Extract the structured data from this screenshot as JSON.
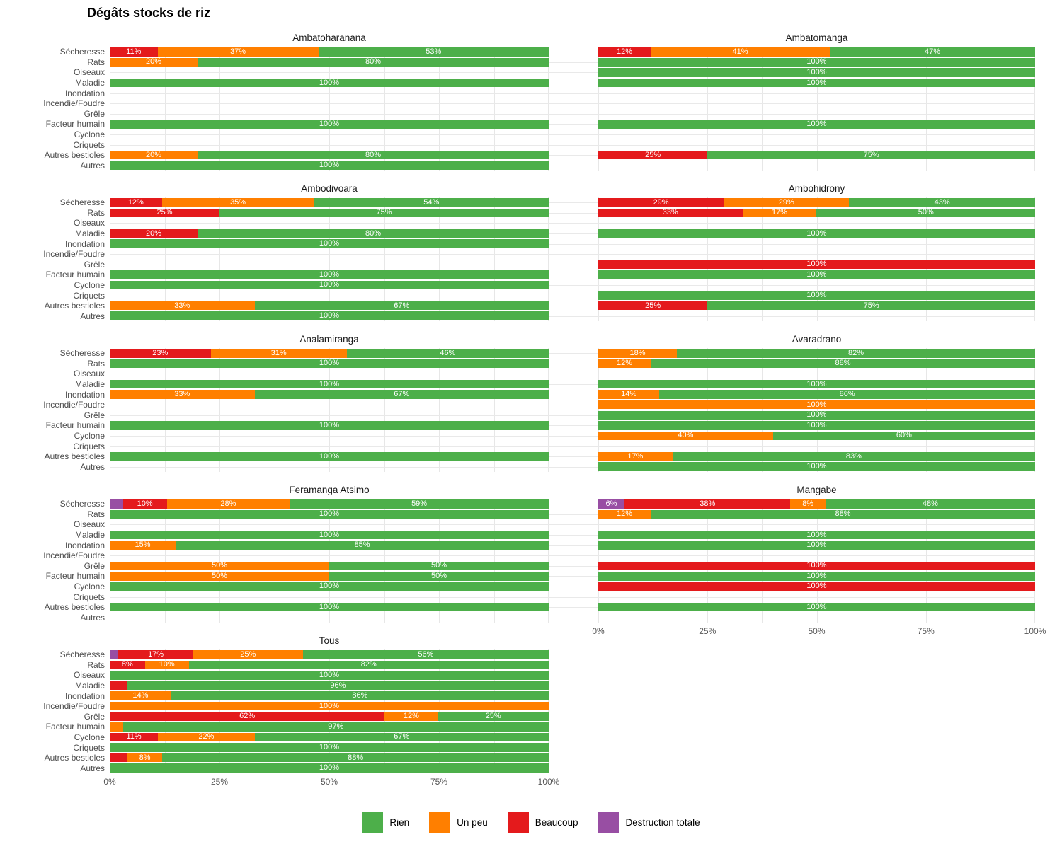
{
  "title": "Dégâts stocks de riz",
  "legend": {
    "items": [
      {
        "label": "Rien",
        "color": "#4daf4a"
      },
      {
        "label": "Un peu",
        "color": "#ff7f00"
      },
      {
        "label": "Beaucoup",
        "color": "#e41a1c"
      },
      {
        "label": "Destruction totale",
        "color": "#984ea3"
      }
    ]
  },
  "chart_data": {
    "type": "bar",
    "stacked": true,
    "orientation": "horizontal",
    "title": "Dégâts stocks de riz",
    "x_ticks": [
      "0%",
      "25%",
      "50%",
      "75%",
      "100%"
    ],
    "x_range": [
      0,
      100
    ],
    "grid": true,
    "legend_position": "bottom",
    "categories": [
      "Sécheresse",
      "Rats",
      "Oiseaux",
      "Maladie",
      "Inondation",
      "Incendie/Foudre",
      "Grêle",
      "Facteur humain",
      "Cyclone",
      "Criquets",
      "Autres bestioles",
      "Autres"
    ],
    "levels": {
      "Rien": "#4daf4a",
      "Un peu": "#ff7f00",
      "Beaucoup": "#e41a1c",
      "Destruction totale": "#984ea3"
    },
    "facet_layout": [
      [
        "Ambatoharanana",
        "Ambatomanga"
      ],
      [
        "Ambodivoara",
        "Ambohidrony"
      ],
      [
        "Analamiranga",
        "Avaradrano"
      ],
      [
        "Feramanga Atsimo",
        "Mangabe"
      ],
      [
        "Tous",
        null
      ]
    ],
    "x_axis_panels": [
      "Mangabe",
      "Tous"
    ],
    "panels": [
      {
        "name": "Ambatoharanana",
        "rows": [
          [
            [
              "Beaucoup",
              11,
              "11%"
            ],
            [
              "Un peu",
              37,
              "37%"
            ],
            [
              "Rien",
              53,
              "53%"
            ]
          ],
          [
            [
              "Un peu",
              20,
              "20%"
            ],
            [
              "Rien",
              80,
              "80%"
            ]
          ],
          [],
          [
            [
              "Rien",
              100,
              "100%"
            ]
          ],
          [],
          [],
          [],
          [
            [
              "Rien",
              100,
              "100%"
            ]
          ],
          [],
          [],
          [
            [
              "Un peu",
              20,
              "20%"
            ],
            [
              "Rien",
              80,
              "80%"
            ]
          ],
          [
            [
              "Rien",
              100,
              "100%"
            ]
          ]
        ]
      },
      {
        "name": "Ambatomanga",
        "rows": [
          [
            [
              "Beaucoup",
              12,
              "12%"
            ],
            [
              "Un peu",
              41,
              "41%"
            ],
            [
              "Rien",
              47,
              "47%"
            ]
          ],
          [
            [
              "Rien",
              100,
              "100%"
            ]
          ],
          [
            [
              "Rien",
              100,
              "100%"
            ]
          ],
          [
            [
              "Rien",
              100,
              "100%"
            ]
          ],
          [],
          [],
          [],
          [
            [
              "Rien",
              100,
              "100%"
            ]
          ],
          [],
          [],
          [
            [
              "Beaucoup",
              25,
              "25%"
            ],
            [
              "Rien",
              75,
              "75%"
            ]
          ],
          []
        ]
      },
      {
        "name": "Ambodivoara",
        "rows": [
          [
            [
              "Beaucoup",
              12,
              "12%"
            ],
            [
              "Un peu",
              35,
              "35%"
            ],
            [
              "Rien",
              54,
              "54%"
            ]
          ],
          [
            [
              "Beaucoup",
              25,
              "25%"
            ],
            [
              "Rien",
              75,
              "75%"
            ]
          ],
          [],
          [
            [
              "Beaucoup",
              20,
              "20%"
            ],
            [
              "Rien",
              80,
              "80%"
            ]
          ],
          [
            [
              "Rien",
              100,
              "100%"
            ]
          ],
          [],
          [],
          [
            [
              "Rien",
              100,
              "100%"
            ]
          ],
          [
            [
              "Rien",
              100,
              "100%"
            ]
          ],
          [],
          [
            [
              "Un peu",
              33,
              "33%"
            ],
            [
              "Rien",
              67,
              "67%"
            ]
          ],
          [
            [
              "Rien",
              100,
              "100%"
            ]
          ]
        ]
      },
      {
        "name": "Ambohidrony",
        "rows": [
          [
            [
              "Beaucoup",
              29,
              "29%"
            ],
            [
              "Un peu",
              29,
              "29%"
            ],
            [
              "Rien",
              43,
              "43%"
            ]
          ],
          [
            [
              "Beaucoup",
              33,
              "33%"
            ],
            [
              "Un peu",
              17,
              "17%"
            ],
            [
              "Rien",
              50,
              "50%"
            ]
          ],
          [],
          [
            [
              "Rien",
              100,
              "100%"
            ]
          ],
          [],
          [],
          [
            [
              "Beaucoup",
              100,
              "100%"
            ]
          ],
          [
            [
              "Rien",
              100,
              "100%"
            ]
          ],
          [],
          [
            [
              "Rien",
              100,
              "100%"
            ]
          ],
          [
            [
              "Beaucoup",
              25,
              "25%"
            ],
            [
              "Rien",
              75,
              "75%"
            ]
          ],
          []
        ]
      },
      {
        "name": "Analamiranga",
        "rows": [
          [
            [
              "Beaucoup",
              23,
              "23%"
            ],
            [
              "Un peu",
              31,
              "31%"
            ],
            [
              "Rien",
              46,
              "46%"
            ]
          ],
          [
            [
              "Rien",
              100,
              "100%"
            ]
          ],
          [],
          [
            [
              "Rien",
              100,
              "100%"
            ]
          ],
          [
            [
              "Un peu",
              33,
              "33%"
            ],
            [
              "Rien",
              67,
              "67%"
            ]
          ],
          [],
          [],
          [
            [
              "Rien",
              100,
              "100%"
            ]
          ],
          [],
          [],
          [
            [
              "Rien",
              100,
              "100%"
            ]
          ],
          []
        ]
      },
      {
        "name": "Avaradrano",
        "rows": [
          [
            [
              "Un peu",
              18,
              "18%"
            ],
            [
              "Rien",
              82,
              "82%"
            ]
          ],
          [
            [
              "Un peu",
              12,
              "12%"
            ],
            [
              "Rien",
              88,
              "88%"
            ]
          ],
          [],
          [
            [
              "Rien",
              100,
              "100%"
            ]
          ],
          [
            [
              "Un peu",
              14,
              "14%"
            ],
            [
              "Rien",
              86,
              "86%"
            ]
          ],
          [
            [
              "Un peu",
              100,
              "100%"
            ]
          ],
          [
            [
              "Rien",
              100,
              "100%"
            ]
          ],
          [
            [
              "Rien",
              100,
              "100%"
            ]
          ],
          [
            [
              "Un peu",
              40,
              "40%"
            ],
            [
              "Rien",
              60,
              "60%"
            ]
          ],
          [],
          [
            [
              "Un peu",
              17,
              "17%"
            ],
            [
              "Rien",
              83,
              "83%"
            ]
          ],
          [
            [
              "Rien",
              100,
              "100%"
            ]
          ]
        ]
      },
      {
        "name": "Feramanga Atsimo",
        "rows": [
          [
            [
              "Destruction totale",
              3,
              ""
            ],
            [
              "Beaucoup",
              10,
              "10%"
            ],
            [
              "Un peu",
              28,
              "28%"
            ],
            [
              "Rien",
              59,
              "59%"
            ]
          ],
          [
            [
              "Rien",
              100,
              "100%"
            ]
          ],
          [],
          [
            [
              "Rien",
              100,
              "100%"
            ]
          ],
          [
            [
              "Un peu",
              15,
              "15%"
            ],
            [
              "Rien",
              85,
              "85%"
            ]
          ],
          [],
          [
            [
              "Un peu",
              50,
              "50%"
            ],
            [
              "Rien",
              50,
              "50%"
            ]
          ],
          [
            [
              "Un peu",
              50,
              "50%"
            ],
            [
              "Rien",
              50,
              "50%"
            ]
          ],
          [
            [
              "Rien",
              100,
              "100%"
            ]
          ],
          [],
          [
            [
              "Rien",
              100,
              "100%"
            ]
          ],
          []
        ]
      },
      {
        "name": "Mangabe",
        "rows": [
          [
            [
              "Destruction totale",
              6,
              "6%"
            ],
            [
              "Beaucoup",
              38,
              "38%"
            ],
            [
              "Un peu",
              8,
              "8%"
            ],
            [
              "Rien",
              48,
              "48%"
            ]
          ],
          [
            [
              "Un peu",
              12,
              "12%"
            ],
            [
              "Rien",
              88,
              "88%"
            ]
          ],
          [],
          [
            [
              "Rien",
              100,
              "100%"
            ]
          ],
          [
            [
              "Rien",
              100,
              "100%"
            ]
          ],
          [],
          [
            [
              "Beaucoup",
              100,
              "100%"
            ]
          ],
          [
            [
              "Rien",
              100,
              "100%"
            ]
          ],
          [
            [
              "Beaucoup",
              100,
              "100%"
            ]
          ],
          [],
          [
            [
              "Rien",
              100,
              "100%"
            ]
          ],
          []
        ]
      },
      {
        "name": "Tous",
        "rows": [
          [
            [
              "Destruction totale",
              2,
              ""
            ],
            [
              "Beaucoup",
              17,
              "17%"
            ],
            [
              "Un peu",
              25,
              "25%"
            ],
            [
              "Rien",
              56,
              "56%"
            ]
          ],
          [
            [
              "Beaucoup",
              8,
              "8%"
            ],
            [
              "Un peu",
              10,
              "10%"
            ],
            [
              "Rien",
              82,
              "82%"
            ]
          ],
          [
            [
              "Rien",
              100,
              "100%"
            ]
          ],
          [
            [
              "Beaucoup",
              4,
              ""
            ],
            [
              "Rien",
              96,
              "96%"
            ]
          ],
          [
            [
              "Un peu",
              14,
              "14%"
            ],
            [
              "Rien",
              86,
              "86%"
            ]
          ],
          [
            [
              "Un peu",
              100,
              "100%"
            ]
          ],
          [
            [
              "Beaucoup",
              62,
              "62%"
            ],
            [
              "Un peu",
              12,
              "12%"
            ],
            [
              "Rien",
              25,
              "25%"
            ]
          ],
          [
            [
              "Un peu",
              3,
              ""
            ],
            [
              "Rien",
              97,
              "97%"
            ]
          ],
          [
            [
              "Beaucoup",
              11,
              "11%"
            ],
            [
              "Un peu",
              22,
              "22%"
            ],
            [
              "Rien",
              67,
              "67%"
            ]
          ],
          [
            [
              "Rien",
              100,
              "100%"
            ]
          ],
          [
            [
              "Beaucoup",
              4,
              ""
            ],
            [
              "Un peu",
              8,
              "8%"
            ],
            [
              "Rien",
              88,
              "88%"
            ]
          ],
          [
            [
              "Rien",
              100,
              "100%"
            ]
          ]
        ]
      }
    ]
  }
}
